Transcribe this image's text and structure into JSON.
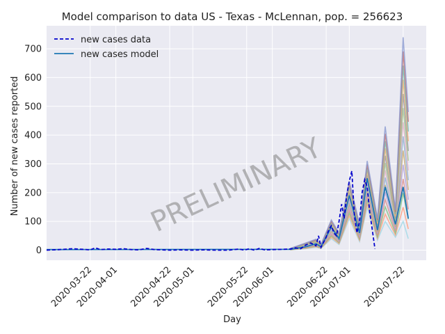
{
  "chart_data": {
    "type": "line",
    "title": "Model comparison to data US - Texas - McLennan, pop. = 256623",
    "xlabel": "Day",
    "ylabel": "Number of new cases reported",
    "x_range": [
      "2020-03-05",
      "2020-07-31"
    ],
    "ylim": [
      -35,
      780
    ],
    "grid": true,
    "legend_position": "upper-left",
    "watermark": "PRELIMINARY",
    "x_ticks": [
      "2020-03-22",
      "2020-04-01",
      "2020-04-22",
      "2020-05-01",
      "2020-05-22",
      "2020-06-01",
      "2020-06-22",
      "2020-07-01",
      "2020-07-22"
    ],
    "y_ticks": [
      0,
      100,
      200,
      300,
      400,
      500,
      600,
      700
    ],
    "legend": [
      {
        "label": "new cases data",
        "color": "#0000cc",
        "style": "dashed"
      },
      {
        "label": "new cases model",
        "color": "#1f77b4",
        "style": "solid"
      }
    ],
    "data_series": {
      "name": "new cases data",
      "color": "#0000cc",
      "points": [
        [
          "2020-03-05",
          0
        ],
        [
          "2020-03-10",
          2
        ],
        [
          "2020-03-15",
          5
        ],
        [
          "2020-03-19",
          3
        ],
        [
          "2020-03-22",
          1
        ],
        [
          "2020-03-24",
          8
        ],
        [
          "2020-03-26",
          2
        ],
        [
          "2020-03-29",
          4
        ],
        [
          "2020-04-01",
          3
        ],
        [
          "2020-04-04",
          5
        ],
        [
          "2020-04-07",
          2
        ],
        [
          "2020-04-10",
          1
        ],
        [
          "2020-04-13",
          6
        ],
        [
          "2020-04-16",
          2
        ],
        [
          "2020-04-19",
          1
        ],
        [
          "2020-04-22",
          0
        ],
        [
          "2020-04-26",
          1
        ],
        [
          "2020-05-01",
          0
        ],
        [
          "2020-05-05",
          1
        ],
        [
          "2020-05-10",
          0
        ],
        [
          "2020-05-15",
          0
        ],
        [
          "2020-05-19",
          4
        ],
        [
          "2020-05-21",
          0
        ],
        [
          "2020-05-23",
          5
        ],
        [
          "2020-05-25",
          0
        ],
        [
          "2020-05-27",
          6
        ],
        [
          "2020-05-29",
          1
        ],
        [
          "2020-06-01",
          2
        ],
        [
          "2020-06-05",
          3
        ],
        [
          "2020-06-08",
          4
        ],
        [
          "2020-06-10",
          8
        ],
        [
          "2020-06-12",
          5
        ],
        [
          "2020-06-14",
          18
        ],
        [
          "2020-06-16",
          25
        ],
        [
          "2020-06-18",
          15
        ],
        [
          "2020-06-19",
          50
        ],
        [
          "2020-06-20",
          10
        ],
        [
          "2020-06-22",
          45
        ],
        [
          "2020-06-23",
          70
        ],
        [
          "2020-06-24",
          85
        ],
        [
          "2020-06-25",
          60
        ],
        [
          "2020-06-26",
          50
        ],
        [
          "2020-06-27",
          100
        ],
        [
          "2020-06-28",
          160
        ],
        [
          "2020-06-29",
          110
        ],
        [
          "2020-06-30",
          190
        ],
        [
          "2020-07-01",
          240
        ],
        [
          "2020-07-02",
          275
        ],
        [
          "2020-07-03",
          120
        ],
        [
          "2020-07-04",
          60
        ],
        [
          "2020-07-05",
          100
        ],
        [
          "2020-07-06",
          200
        ],
        [
          "2020-07-07",
          245
        ],
        [
          "2020-07-08",
          220
        ],
        [
          "2020-07-09",
          130
        ],
        [
          "2020-07-10",
          70
        ],
        [
          "2020-07-11",
          5
        ]
      ]
    },
    "model_envelope": {
      "name": "new cases model",
      "x": [
        "2020-06-08",
        "2020-06-14",
        "2020-06-18",
        "2020-06-20",
        "2020-06-24",
        "2020-06-27",
        "2020-07-01",
        "2020-07-05",
        "2020-07-08",
        "2020-07-12",
        "2020-07-15",
        "2020-07-19",
        "2020-07-22",
        "2020-07-24"
      ],
      "median": [
        3,
        12,
        22,
        12,
        80,
        40,
        190,
        60,
        250,
        70,
        220,
        90,
        220,
        110
      ],
      "low": [
        1,
        5,
        10,
        6,
        40,
        20,
        110,
        30,
        150,
        35,
        100,
        45,
        100,
        40
      ],
      "high": [
        6,
        25,
        38,
        20,
        105,
        60,
        240,
        90,
        310,
        110,
        430,
        140,
        740,
        480
      ]
    }
  }
}
